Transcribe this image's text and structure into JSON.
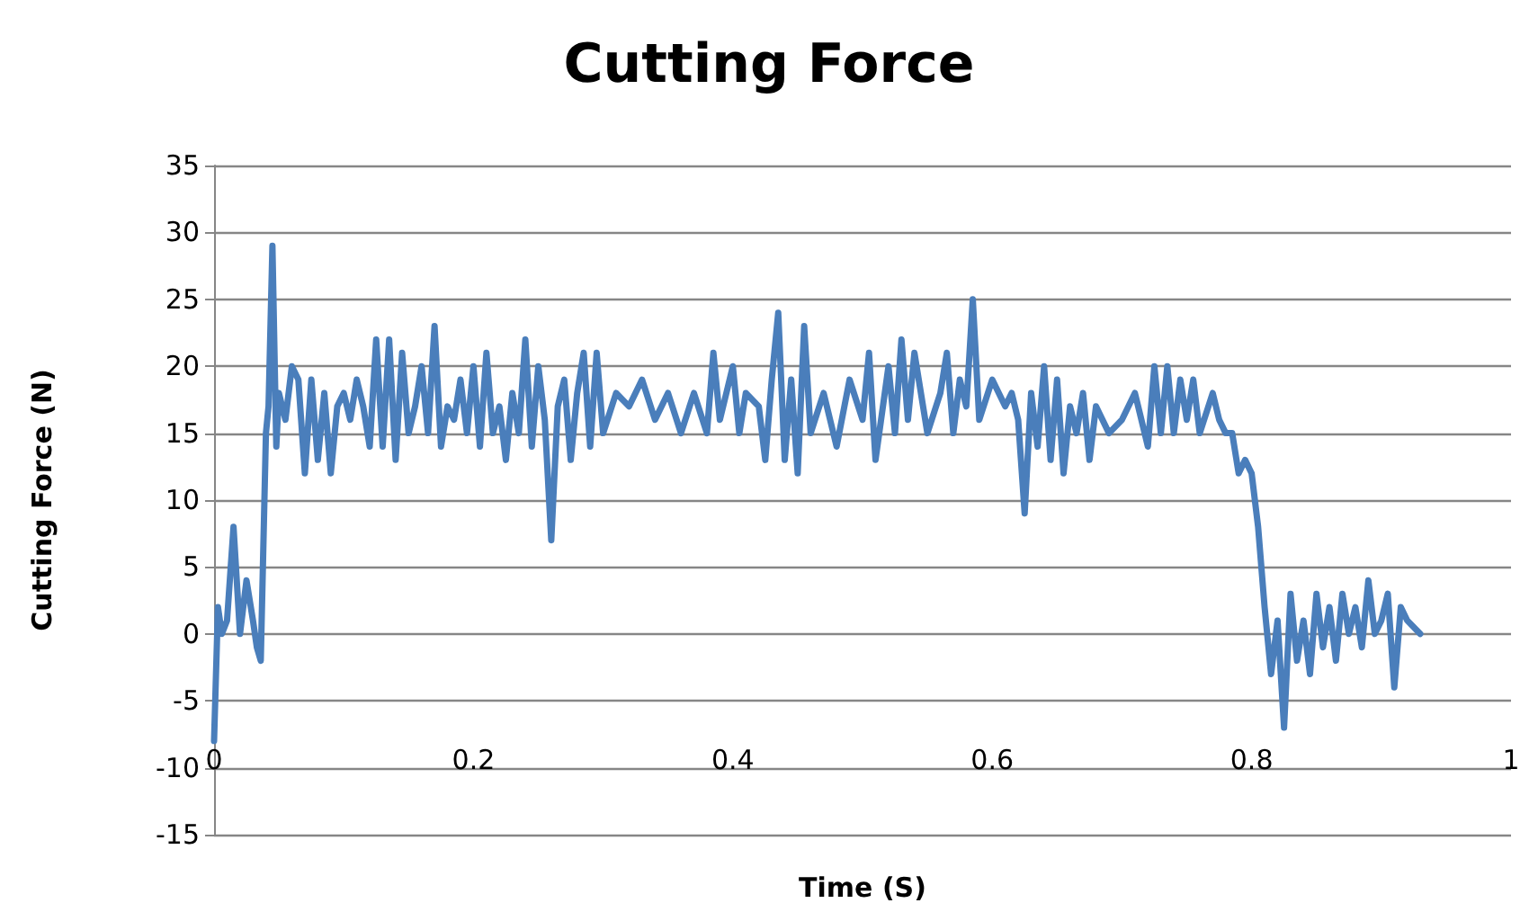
{
  "chart_data": {
    "type": "line",
    "title": "Cutting Force",
    "xlabel": "Time (S)",
    "ylabel": "Cutting Force (N)",
    "x": [
      0,
      0.003,
      0.006,
      0.01,
      0.015,
      0.02,
      0.025,
      0.03,
      0.033,
      0.036,
      0.04,
      0.042,
      0.045,
      0.048,
      0.05,
      0.055,
      0.06,
      0.065,
      0.07,
      0.075,
      0.08,
      0.085,
      0.09,
      0.095,
      0.1,
      0.105,
      0.11,
      0.115,
      0.12,
      0.125,
      0.13,
      0.135,
      0.14,
      0.145,
      0.15,
      0.155,
      0.16,
      0.165,
      0.17,
      0.175,
      0.18,
      0.185,
      0.19,
      0.195,
      0.2,
      0.205,
      0.21,
      0.215,
      0.22,
      0.225,
      0.23,
      0.235,
      0.24,
      0.245,
      0.25,
      0.255,
      0.26,
      0.265,
      0.27,
      0.275,
      0.28,
      0.285,
      0.29,
      0.295,
      0.3,
      0.31,
      0.32,
      0.33,
      0.34,
      0.35,
      0.36,
      0.37,
      0.38,
      0.385,
      0.39,
      0.4,
      0.405,
      0.41,
      0.42,
      0.425,
      0.43,
      0.435,
      0.44,
      0.445,
      0.45,
      0.455,
      0.46,
      0.47,
      0.48,
      0.49,
      0.5,
      0.505,
      0.51,
      0.52,
      0.525,
      0.53,
      0.535,
      0.54,
      0.55,
      0.56,
      0.565,
      0.57,
      0.575,
      0.58,
      0.585,
      0.59,
      0.6,
      0.61,
      0.615,
      0.62,
      0.625,
      0.63,
      0.635,
      0.64,
      0.645,
      0.65,
      0.655,
      0.66,
      0.665,
      0.67,
      0.675,
      0.68,
      0.69,
      0.7,
      0.71,
      0.72,
      0.725,
      0.73,
      0.735,
      0.74,
      0.745,
      0.75,
      0.755,
      0.76,
      0.77,
      0.775,
      0.78,
      0.785,
      0.79,
      0.795,
      0.8,
      0.805,
      0.81,
      0.815,
      0.82,
      0.825,
      0.83,
      0.835,
      0.84,
      0.845,
      0.85,
      0.855,
      0.86,
      0.865,
      0.87,
      0.875,
      0.88,
      0.885,
      0.89,
      0.895,
      0.9,
      0.905,
      0.91,
      0.915,
      0.92,
      0.93
    ],
    "series": [
      {
        "color": "#4a7ebb",
        "values": [
          -8,
          2,
          0,
          1,
          8,
          0,
          4,
          1,
          -1,
          -2,
          15,
          17,
          29,
          14,
          18,
          16,
          20,
          19,
          12,
          19,
          13,
          18,
          12,
          17,
          18,
          16,
          19,
          17,
          14,
          22,
          14,
          22,
          13,
          21,
          15,
          17,
          20,
          15,
          23,
          14,
          17,
          16,
          19,
          15,
          20,
          14,
          21,
          15,
          17,
          13,
          18,
          15,
          22,
          14,
          20,
          16,
          7,
          17,
          19,
          13,
          18,
          21,
          14,
          21,
          15,
          18,
          17,
          19,
          16,
          18,
          15,
          18,
          15,
          21,
          16,
          20,
          15,
          18,
          17,
          13,
          19,
          24,
          13,
          19,
          12,
          23,
          15,
          18,
          14,
          19,
          16,
          21,
          13,
          20,
          15,
          22,
          16,
          21,
          15,
          18,
          21,
          15,
          19,
          17,
          25,
          16,
          19,
          17,
          18,
          16,
          9,
          18,
          14,
          20,
          13,
          19,
          12,
          17,
          15,
          18,
          13,
          17,
          15,
          16,
          18,
          14,
          20,
          15,
          20,
          15,
          19,
          16,
          19,
          15,
          18,
          16,
          15,
          15,
          12,
          13,
          12,
          8,
          2,
          -3,
          1,
          -7,
          3,
          -2,
          1,
          -3,
          3,
          -1,
          2,
          -2,
          3,
          0,
          2,
          -1,
          4,
          0,
          1,
          3,
          -4,
          2,
          1,
          0
        ]
      }
    ],
    "xlim": [
      0,
      1
    ],
    "xticks": [
      0,
      0.2,
      0.4,
      0.6,
      0.8,
      1
    ],
    "ylim": [
      -15,
      35
    ],
    "yticks": [
      -15,
      -10,
      -5,
      0,
      5,
      10,
      15,
      20,
      25,
      30,
      35
    ],
    "grid": "y",
    "marker": "none",
    "line_style": "solid"
  }
}
